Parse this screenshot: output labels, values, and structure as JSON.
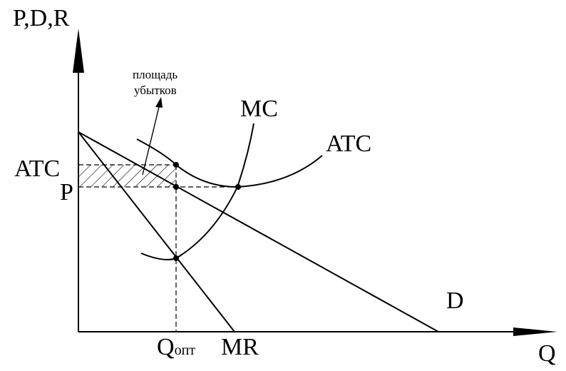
{
  "axes": {
    "y_label": "P,D,R",
    "x_label": "Q"
  },
  "curves": {
    "mc_label": "MC",
    "atc_label": "ATC",
    "demand_label": "D",
    "mr_label": "MR"
  },
  "price_labels": {
    "atc": "ATC",
    "p": "P"
  },
  "quantity_label": {
    "main": "Q",
    "subscript": "опт"
  },
  "annotation": {
    "line1": "площадь",
    "line2": "убытков"
  },
  "colors": {
    "ink": "#000000",
    "background": "#ffffff"
  }
}
